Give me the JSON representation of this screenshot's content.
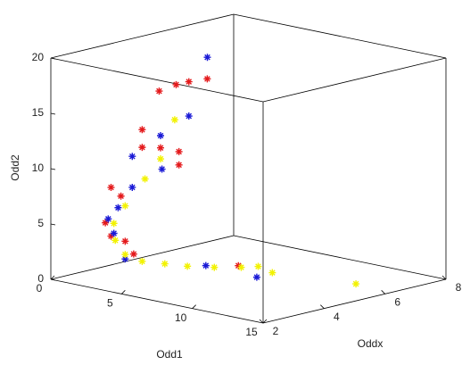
{
  "chart_data": {
    "type": "scatter3d",
    "xlabel": "Odd1",
    "ylabel": "Oddx",
    "zlabel": "Odd2",
    "xlim": [
      0,
      15
    ],
    "xticks": [
      0,
      5,
      10,
      15
    ],
    "ylim": [
      2,
      8
    ],
    "yticks": [
      2,
      4,
      6,
      8
    ],
    "zlim": [
      0,
      20
    ],
    "zticks": [
      0,
      5,
      10,
      15,
      20
    ],
    "grid": false,
    "series": [
      {
        "color": "#e41a1c",
        "x": [
          5.5,
          6.7,
          7.6,
          8.9,
          4.3,
          4.3,
          5.6,
          6.9,
          6.9,
          2.1,
          2.8,
          1.7,
          2.1,
          3.1,
          3.7,
          11.1
        ],
        "y": [
          3,
          3,
          3,
          3,
          3,
          3,
          3,
          3,
          3,
          3,
          3,
          3,
          3,
          3,
          3,
          3
        ],
        "z": [
          17.8,
          18.7,
          19.2,
          19.8,
          14.0,
          12.4,
          12.7,
          12.7,
          11.5,
          8.2,
          7.6,
          4.9,
          3.8,
          3.6,
          2.6,
          3.5
        ]
      },
      {
        "color": "#1a1ad6",
        "x": [
          4.6,
          7.6,
          5.6,
          3.6,
          5.7,
          3.6,
          2.6,
          1.9,
          2.3,
          3.1,
          8.8,
          12.4
        ],
        "y": [
          5,
          3,
          3,
          3,
          3,
          3,
          3,
          3,
          3,
          3,
          3,
          3
        ],
        "z": [
          19.3,
          16.1,
          13.8,
          11.4,
          10.8,
          8.6,
          6.5,
          5.3,
          4.1,
          2.0,
          2.9,
          2.8
        ]
      },
      {
        "color": "#f2f200",
        "x": [
          6.6,
          5.6,
          4.5,
          3.1,
          2.3,
          2.4,
          3.1,
          4.3,
          5.9,
          7.5,
          9.4,
          11.3,
          12.5,
          13.5,
          12.3
        ],
        "y": [
          3,
          3,
          3,
          3,
          3,
          3,
          3,
          3,
          3,
          3,
          3,
          3,
          3,
          3,
          6.3
        ],
        "z": [
          15.5,
          11.7,
          9.6,
          6.8,
          5.0,
          3.5,
          2.4,
          2.1,
          2.3,
          2.5,
          2.9,
          3.4,
          3.8,
          3.5,
          0
        ]
      }
    ]
  }
}
